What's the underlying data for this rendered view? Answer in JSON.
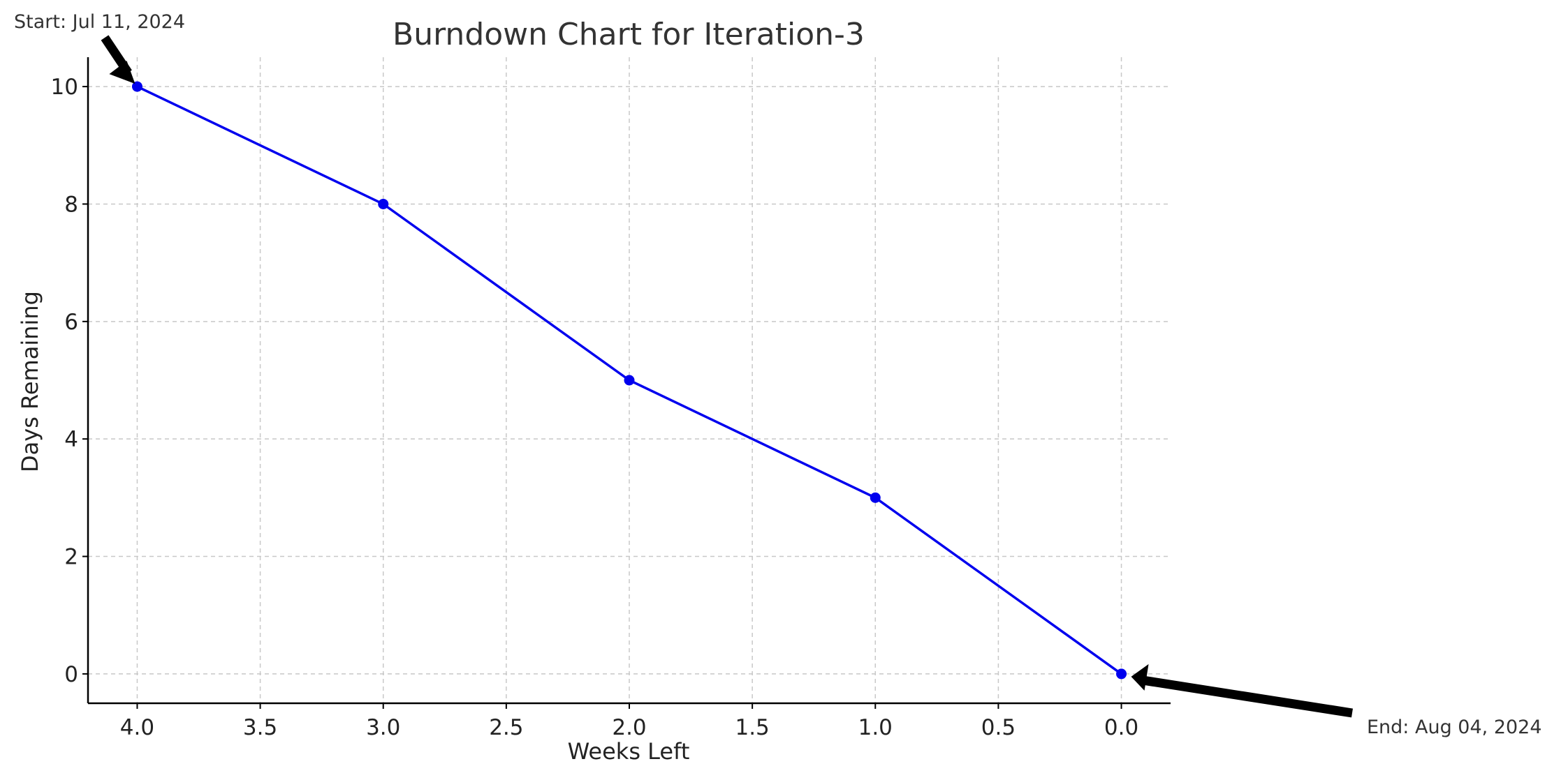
{
  "chart_data": {
    "type": "line",
    "title": "Burndown Chart for Iteration-3",
    "xlabel": "Weeks Left",
    "ylabel": "Days Remaining",
    "x": [
      4.0,
      3.0,
      2.0,
      1.0,
      0.0
    ],
    "series": [
      {
        "values": [
          10,
          8,
          5,
          3,
          0
        ],
        "color": "#0000ee"
      }
    ],
    "xlim": [
      4.2,
      -0.2
    ],
    "ylim": [
      -0.5,
      10.5
    ],
    "x_inverted": true,
    "xticks": [
      4.0,
      3.5,
      3.0,
      2.5,
      2.0,
      1.5,
      1.0,
      0.5,
      0.0
    ],
    "xtick_labels": [
      "4.0",
      "3.5",
      "3.0",
      "2.5",
      "2.0",
      "1.5",
      "1.0",
      "0.5",
      "0.0"
    ],
    "yticks": [
      0,
      2,
      4,
      6,
      8,
      10
    ],
    "ytick_labels": [
      "0",
      "2",
      "4",
      "6",
      "8",
      "10"
    ],
    "grid": true,
    "legend": "none",
    "annotations": [
      {
        "text": "Start: Jul 11, 2024",
        "x": 4.0,
        "y": 10
      },
      {
        "text": "End: Aug 04, 2024",
        "x": 0.0,
        "y": 0
      }
    ]
  }
}
